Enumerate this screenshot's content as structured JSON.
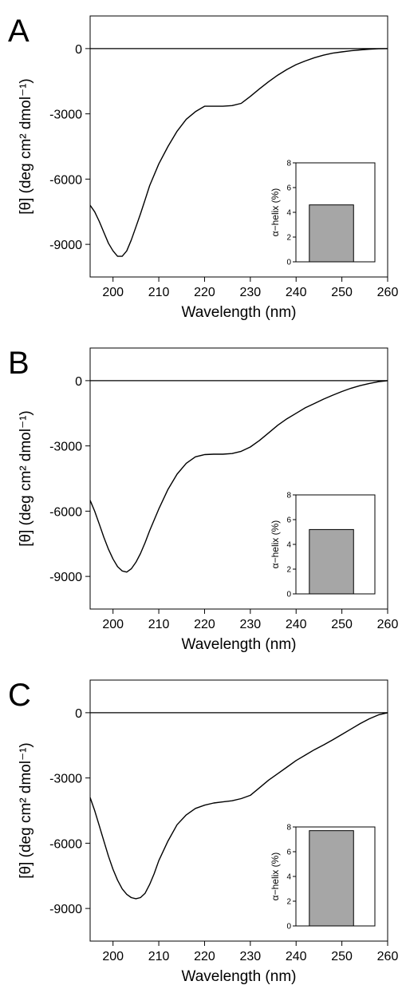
{
  "chart_data": [
    {
      "panel_label": "A",
      "type": "line",
      "xlabel": "Wavelength (nm)",
      "ylabel": "[θ] (deg cm² dmol⁻¹)",
      "xlim": [
        195,
        260
      ],
      "ylim": [
        -10500,
        1500
      ],
      "xticks": [
        200,
        210,
        220,
        230,
        240,
        250,
        260
      ],
      "yticks": [
        0,
        -3000,
        -6000,
        -9000
      ],
      "zero_line": true,
      "grid": false,
      "series": [
        {
          "x": [
            195,
            196,
            197,
            198,
            199,
            200,
            201,
            202,
            203,
            204,
            205,
            206,
            207,
            208,
            210,
            212,
            214,
            216,
            218,
            220,
            222,
            224,
            226,
            228,
            230,
            232,
            234,
            236,
            238,
            240,
            242,
            244,
            246,
            248,
            250,
            252,
            254,
            256,
            258,
            260
          ],
          "y": [
            -7200,
            -7500,
            -7950,
            -8450,
            -8950,
            -9300,
            -9550,
            -9550,
            -9300,
            -8800,
            -8200,
            -7600,
            -6950,
            -6300,
            -5300,
            -4500,
            -3800,
            -3250,
            -2900,
            -2650,
            -2650,
            -2650,
            -2620,
            -2520,
            -2200,
            -1850,
            -1520,
            -1220,
            -960,
            -740,
            -570,
            -420,
            -300,
            -210,
            -150,
            -100,
            -60,
            -30,
            -10,
            0
          ]
        }
      ],
      "inset": {
        "type": "bar",
        "ylabel": "α−helix (%)",
        "ylim": [
          0,
          8
        ],
        "yticks": [
          0,
          2,
          4,
          6,
          8
        ],
        "values": [
          4.6
        ],
        "bar_color": "#a6a6a6"
      }
    },
    {
      "panel_label": "B",
      "type": "line",
      "xlabel": "Wavelength (nm)",
      "ylabel": "[θ] (deg cm² dmol⁻¹)",
      "xlim": [
        195,
        260
      ],
      "ylim": [
        -10500,
        1500
      ],
      "xticks": [
        200,
        210,
        220,
        230,
        240,
        250,
        260
      ],
      "yticks": [
        0,
        -3000,
        -6000,
        -9000
      ],
      "zero_line": true,
      "grid": false,
      "series": [
        {
          "x": [
            195,
            196,
            197,
            198,
            199,
            200,
            201,
            202,
            203,
            204,
            205,
            206,
            207,
            208,
            210,
            212,
            214,
            216,
            218,
            220,
            222,
            224,
            226,
            228,
            230,
            232,
            234,
            236,
            238,
            240,
            242,
            244,
            246,
            248,
            250,
            252,
            254,
            256,
            258,
            260
          ],
          "y": [
            -5500,
            -6000,
            -6600,
            -7200,
            -7750,
            -8200,
            -8550,
            -8750,
            -8800,
            -8650,
            -8350,
            -7950,
            -7450,
            -6900,
            -5900,
            -5000,
            -4300,
            -3800,
            -3500,
            -3400,
            -3380,
            -3380,
            -3350,
            -3250,
            -3050,
            -2750,
            -2400,
            -2050,
            -1750,
            -1500,
            -1250,
            -1050,
            -850,
            -670,
            -500,
            -350,
            -230,
            -130,
            -50,
            0
          ]
        }
      ],
      "inset": {
        "type": "bar",
        "ylabel": "α−helix (%)",
        "ylim": [
          0,
          8
        ],
        "yticks": [
          0,
          2,
          4,
          6,
          8
        ],
        "values": [
          5.2
        ],
        "bar_color": "#a6a6a6"
      }
    },
    {
      "panel_label": "C",
      "type": "line",
      "xlabel": "Wavelength (nm)",
      "ylabel": "[θ] (deg cm² dmol⁻¹)",
      "xlim": [
        195,
        260
      ],
      "ylim": [
        -10500,
        1500
      ],
      "xticks": [
        200,
        210,
        220,
        230,
        240,
        250,
        260
      ],
      "yticks": [
        0,
        -3000,
        -6000,
        -9000
      ],
      "zero_line": true,
      "grid": false,
      "series": [
        {
          "x": [
            195,
            196,
            197,
            198,
            199,
            200,
            201,
            202,
            203,
            204,
            205,
            206,
            207,
            208,
            209,
            210,
            212,
            214,
            216,
            218,
            220,
            222,
            224,
            226,
            228,
            230,
            232,
            234,
            236,
            238,
            240,
            242,
            244,
            246,
            248,
            250,
            252,
            254,
            256,
            258,
            260
          ],
          "y": [
            -3900,
            -4500,
            -5200,
            -5900,
            -6600,
            -7200,
            -7700,
            -8100,
            -8350,
            -8500,
            -8550,
            -8500,
            -8300,
            -7900,
            -7400,
            -6800,
            -5900,
            -5150,
            -4700,
            -4400,
            -4250,
            -4150,
            -4100,
            -4050,
            -3950,
            -3800,
            -3450,
            -3100,
            -2800,
            -2500,
            -2200,
            -1950,
            -1700,
            -1480,
            -1250,
            -1000,
            -750,
            -500,
            -280,
            -100,
            0
          ]
        }
      ],
      "inset": {
        "type": "bar",
        "ylabel": "α−helix (%)",
        "ylim": [
          0,
          8
        ],
        "yticks": [
          0,
          2,
          4,
          6,
          8
        ],
        "values": [
          7.7
        ],
        "bar_color": "#a6a6a6"
      }
    }
  ]
}
